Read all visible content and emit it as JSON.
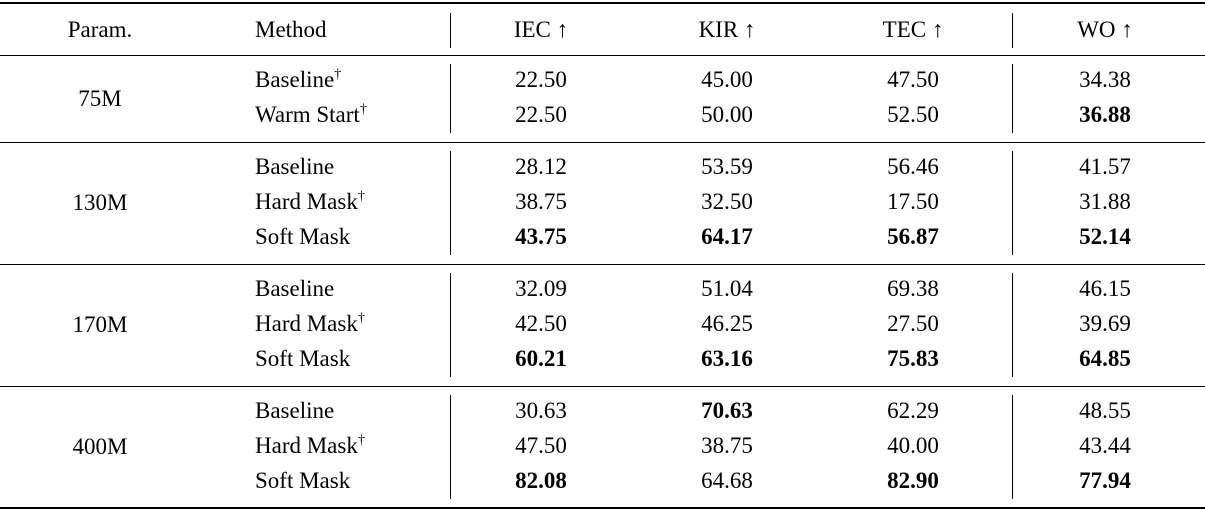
{
  "table": {
    "header": [
      "Param.",
      "Method",
      "IEC ↑",
      "KIR ↑",
      "TEC ↑",
      "WO ↑"
    ],
    "groups": [
      {
        "param": "75M",
        "rows": [
          {
            "method": "Baseline",
            "mark": "†",
            "values": [
              "22.50",
              "45.00",
              "47.50",
              "34.38"
            ],
            "bold": []
          },
          {
            "method": "Warm Start",
            "mark": "†",
            "values": [
              "22.50",
              "50.00",
              "52.50",
              "36.88"
            ],
            "bold": [
              3
            ]
          }
        ]
      },
      {
        "param": "130M",
        "rows": [
          {
            "method": "Baseline",
            "values": [
              "28.12",
              "53.59",
              "56.46",
              "41.57"
            ],
            "bold": []
          },
          {
            "method": "Hard Mask",
            "mark": "†",
            "values": [
              "38.75",
              "32.50",
              "17.50",
              "31.88"
            ],
            "bold": []
          },
          {
            "method": "Soft Mask",
            "values": [
              "43.75",
              "64.17",
              "56.87",
              "52.14"
            ],
            "bold": [
              0,
              1,
              2,
              3
            ]
          }
        ]
      },
      {
        "param": "170M",
        "rows": [
          {
            "method": "Baseline",
            "values": [
              "32.09",
              "51.04",
              "69.38",
              "46.15"
            ],
            "bold": []
          },
          {
            "method": "Hard Mask",
            "mark": "†",
            "values": [
              "42.50",
              "46.25",
              "27.50",
              "39.69"
            ],
            "bold": []
          },
          {
            "method": "Soft Mask",
            "values": [
              "60.21",
              "63.16",
              "75.83",
              "64.85"
            ],
            "bold": [
              0,
              1,
              2,
              3
            ]
          }
        ]
      },
      {
        "param": "400M",
        "rows": [
          {
            "method": "Baseline",
            "values": [
              "30.63",
              "70.63",
              "62.29",
              "48.55"
            ],
            "bold": [
              1
            ]
          },
          {
            "method": "Hard Mask",
            "mark": "†",
            "values": [
              "47.50",
              "38.75",
              "40.00",
              "43.44"
            ],
            "bold": []
          },
          {
            "method": "Soft Mask",
            "values": [
              "82.08",
              "64.68",
              "82.90",
              "77.94"
            ],
            "bold": [
              0,
              2,
              3
            ]
          }
        ]
      }
    ]
  }
}
